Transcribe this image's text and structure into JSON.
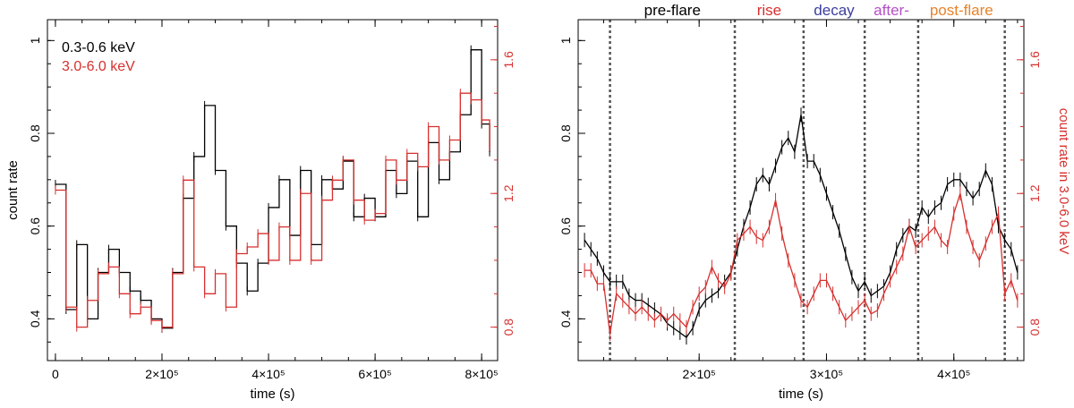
{
  "chart_data": [
    {
      "type": "line",
      "xlabel": "time (s)",
      "ylabel": "count rate",
      "y2label": "",
      "xlim": [
        -15000,
        830000
      ],
      "ylim": [
        0.31,
        1.045
      ],
      "y2lim": [
        0.7,
        1.72
      ],
      "x_ticks": [
        0,
        200000,
        400000,
        600000,
        800000
      ],
      "x_tick_labels": [
        "0",
        "2×10⁵",
        "4×10⁵",
        "6×10⁵",
        "8×10⁵"
      ],
      "y_ticks": [
        0.4,
        0.6,
        0.8,
        1
      ],
      "y_tick_labels": [
        "0.4",
        "0.6",
        "0.8",
        "1"
      ],
      "y2_ticks": [
        0.8,
        1.2,
        1.6
      ],
      "y2_tick_labels": [
        "0.8",
        "1.2",
        "1.6"
      ],
      "legend": [
        "0.3-0.6 keV",
        "3.0-6.0 keV"
      ],
      "legend_position": "top-left",
      "series": [
        {
          "name": "0.3-0.6 keV",
          "color": "#000000",
          "axis": "left",
          "style": "step",
          "x": [
            0,
            20000,
            40000,
            60000,
            80000,
            100000,
            120000,
            140000,
            160000,
            180000,
            200000,
            220000,
            240000,
            260000,
            280000,
            300000,
            320000,
            340000,
            360000,
            380000,
            400000,
            420000,
            440000,
            460000,
            480000,
            500000,
            520000,
            540000,
            560000,
            580000,
            600000,
            620000,
            640000,
            660000,
            680000,
            700000,
            720000,
            740000,
            760000,
            780000,
            800000,
            815000
          ],
          "y": [
            0.69,
            0.42,
            0.56,
            0.4,
            0.5,
            0.55,
            0.5,
            0.46,
            0.44,
            0.4,
            0.38,
            0.5,
            0.66,
            0.75,
            0.86,
            0.72,
            0.6,
            0.52,
            0.46,
            0.52,
            0.64,
            0.7,
            0.58,
            0.72,
            0.56,
            0.7,
            0.68,
            0.74,
            0.62,
            0.66,
            0.62,
            0.72,
            0.67,
            0.74,
            0.62,
            0.78,
            0.7,
            0.76,
            0.84,
            0.98,
            0.82,
            0.76
          ]
        },
        {
          "name": "3.0-6.0 keV",
          "color": "#d6302e",
          "axis": "right",
          "style": "step",
          "x": [
            0,
            20000,
            40000,
            60000,
            80000,
            100000,
            120000,
            140000,
            160000,
            180000,
            200000,
            220000,
            240000,
            260000,
            280000,
            300000,
            320000,
            340000,
            360000,
            380000,
            400000,
            420000,
            440000,
            460000,
            480000,
            500000,
            520000,
            540000,
            560000,
            580000,
            600000,
            620000,
            640000,
            660000,
            680000,
            700000,
            720000,
            740000,
            760000,
            780000,
            800000,
            815000
          ],
          "y": [
            1.21,
            0.86,
            0.8,
            0.88,
            0.96,
            0.98,
            0.9,
            0.84,
            0.86,
            0.82,
            0.8,
            0.96,
            1.24,
            0.98,
            0.9,
            0.96,
            0.86,
            1.02,
            1.04,
            1.08,
            1.0,
            1.1,
            1.0,
            1.2,
            1.0,
            1.18,
            1.24,
            1.3,
            1.18,
            1.12,
            1.14,
            1.3,
            1.24,
            1.32,
            1.28,
            1.4,
            1.3,
            1.36,
            1.5,
            1.48,
            1.42,
            1.34
          ]
        }
      ]
    },
    {
      "type": "line",
      "xlabel": "time (s)",
      "ylabel": "",
      "y2label": "count rate in 3.0-6.0 keV",
      "xlim": [
        105000,
        455000
      ],
      "ylim": [
        0.31,
        1.045
      ],
      "y2lim": [
        0.7,
        1.72
      ],
      "x_ticks": [
        200000,
        300000,
        400000
      ],
      "x_tick_labels": [
        "2×10⁵",
        "3×10⁵",
        "4×10⁵"
      ],
      "y_ticks": [
        0.4,
        0.6,
        0.8,
        1
      ],
      "y_tick_labels": [
        "0.4",
        "0.6",
        "0.8",
        "1"
      ],
      "y2_ticks": [
        0.8,
        1.2,
        1.6
      ],
      "y2_tick_labels": [
        "0.8",
        "1.2",
        "1.6"
      ],
      "phase_boundaries": [
        130000,
        228000,
        282000,
        330000,
        372000,
        440000
      ],
      "phase_labels": [
        {
          "text": "pre-flare",
          "x": 179000,
          "color": "#000000"
        },
        {
          "text": "rise",
          "x": 255000,
          "color": "#d6302e"
        },
        {
          "text": "decay",
          "x": 306000,
          "color": "#3b3d9e"
        },
        {
          "text": "after-",
          "x": 351000,
          "color": "#b44fc8"
        },
        {
          "text": "post-flare",
          "x": 406000,
          "color": "#e8832a"
        }
      ],
      "series": [
        {
          "name": "0.3-0.6 keV",
          "color": "#000000",
          "axis": "left",
          "style": "line",
          "x": [
            110000,
            115000,
            120000,
            125000,
            130000,
            135000,
            140000,
            145000,
            150000,
            155000,
            160000,
            165000,
            170000,
            175000,
            180000,
            185000,
            190000,
            195000,
            200000,
            205000,
            210000,
            215000,
            220000,
            225000,
            230000,
            235000,
            240000,
            245000,
            250000,
            255000,
            260000,
            265000,
            270000,
            275000,
            280000,
            285000,
            290000,
            295000,
            300000,
            305000,
            310000,
            315000,
            320000,
            325000,
            330000,
            335000,
            340000,
            345000,
            350000,
            355000,
            360000,
            365000,
            370000,
            375000,
            380000,
            385000,
            390000,
            395000,
            400000,
            405000,
            410000,
            415000,
            420000,
            425000,
            430000,
            435000,
            440000,
            445000,
            450000
          ],
          "y": [
            0.57,
            0.55,
            0.53,
            0.5,
            0.48,
            0.48,
            0.48,
            0.45,
            0.44,
            0.44,
            0.43,
            0.42,
            0.41,
            0.39,
            0.38,
            0.37,
            0.36,
            0.38,
            0.42,
            0.44,
            0.45,
            0.46,
            0.48,
            0.5,
            0.55,
            0.6,
            0.64,
            0.69,
            0.71,
            0.69,
            0.73,
            0.77,
            0.79,
            0.76,
            0.84,
            0.74,
            0.74,
            0.71,
            0.67,
            0.63,
            0.59,
            0.54,
            0.49,
            0.46,
            0.48,
            0.45,
            0.46,
            0.47,
            0.5,
            0.55,
            0.58,
            0.6,
            0.59,
            0.64,
            0.62,
            0.64,
            0.65,
            0.69,
            0.7,
            0.7,
            0.68,
            0.66,
            0.68,
            0.72,
            0.69,
            0.6,
            0.57,
            0.55,
            0.5
          ]
        },
        {
          "name": "3.0-6.0 keV",
          "color": "#d6302e",
          "axis": "right",
          "style": "line",
          "x": [
            110000,
            115000,
            120000,
            125000,
            130000,
            135000,
            140000,
            145000,
            150000,
            155000,
            160000,
            165000,
            170000,
            175000,
            180000,
            185000,
            190000,
            195000,
            200000,
            205000,
            210000,
            215000,
            220000,
            225000,
            230000,
            235000,
            240000,
            245000,
            250000,
            255000,
            260000,
            265000,
            270000,
            275000,
            280000,
            285000,
            290000,
            295000,
            300000,
            305000,
            310000,
            315000,
            320000,
            325000,
            330000,
            335000,
            340000,
            345000,
            350000,
            355000,
            360000,
            365000,
            370000,
            375000,
            380000,
            385000,
            390000,
            395000,
            400000,
            405000,
            410000,
            415000,
            420000,
            425000,
            430000,
            435000,
            440000,
            445000,
            450000
          ],
          "y": [
            0.97,
            0.97,
            0.93,
            0.93,
            0.78,
            0.9,
            0.88,
            0.86,
            0.84,
            0.86,
            0.84,
            0.82,
            0.84,
            0.82,
            0.84,
            0.82,
            0.8,
            0.86,
            0.9,
            0.92,
            0.98,
            0.94,
            0.92,
            0.96,
            1.06,
            1.08,
            1.1,
            1.07,
            1.06,
            1.1,
            1.18,
            1.08,
            1.0,
            0.94,
            0.88,
            0.86,
            0.9,
            0.94,
            0.94,
            0.9,
            0.86,
            0.82,
            0.84,
            0.86,
            0.88,
            0.84,
            0.85,
            0.9,
            0.94,
            0.98,
            1.02,
            1.1,
            1.04,
            1.06,
            1.08,
            1.1,
            1.06,
            1.04,
            1.14,
            1.2,
            1.1,
            1.04,
            1.0,
            1.05,
            1.1,
            1.14,
            0.9,
            0.94,
            0.88
          ]
        }
      ]
    }
  ]
}
